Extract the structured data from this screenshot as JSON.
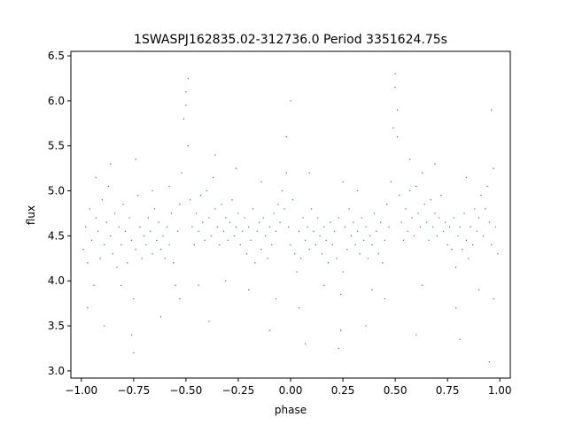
{
  "chart_data": {
    "type": "scatter",
    "title": "1SWASPJ162835.02-312736.0 Period 3351624.75s",
    "xlabel": "phase",
    "ylabel": "flux",
    "xlim": [
      -1.05,
      1.05
    ],
    "ylim": [
      2.92,
      6.55
    ],
    "grid": false,
    "legend": "none",
    "series_color": "#1f77b4",
    "x_ticks": [
      {
        "value": -1.0,
        "label": "−1.00"
      },
      {
        "value": -0.75,
        "label": "−0.75"
      },
      {
        "value": -0.5,
        "label": "−0.50"
      },
      {
        "value": -0.25,
        "label": "−0.25"
      },
      {
        "value": 0.0,
        "label": "0.00"
      },
      {
        "value": 0.25,
        "label": "0.25"
      },
      {
        "value": 0.5,
        "label": "0.50"
      },
      {
        "value": 0.75,
        "label": "0.75"
      },
      {
        "value": 1.0,
        "label": "1.00"
      }
    ],
    "y_ticks": [
      {
        "value": 3.0,
        "label": "3.0"
      },
      {
        "value": 3.5,
        "label": "3.5"
      },
      {
        "value": 4.0,
        "label": "4.0"
      },
      {
        "value": 4.5,
        "label": "4.5"
      },
      {
        "value": 5.0,
        "label": "5.0"
      },
      {
        "value": 5.5,
        "label": "5.5"
      },
      {
        "value": 6.0,
        "label": "6.0"
      },
      {
        "value": 6.5,
        "label": "6.5"
      }
    ],
    "series": [
      {
        "points": [
          [
            -0.99,
            4.35
          ],
          [
            -0.98,
            4.6
          ],
          [
            -0.97,
            4.2
          ],
          [
            -0.96,
            4.8
          ],
          [
            -0.95,
            4.45
          ],
          [
            -0.94,
            3.95
          ],
          [
            -0.93,
            4.7
          ],
          [
            -0.92,
            4.55
          ],
          [
            -0.91,
            4.25
          ],
          [
            -0.9,
            4.9
          ],
          [
            -0.89,
            4.4
          ],
          [
            -0.88,
            4.65
          ],
          [
            -0.87,
            5.05
          ],
          [
            -0.86,
            4.5
          ],
          [
            -0.85,
            4.3
          ],
          [
            -0.84,
            4.75
          ],
          [
            -0.83,
            4.15
          ],
          [
            -0.82,
            4.6
          ],
          [
            -0.81,
            4.4
          ],
          [
            -0.8,
            4.85
          ],
          [
            -0.79,
            4.55
          ],
          [
            -0.78,
            4.2
          ],
          [
            -0.77,
            4.7
          ],
          [
            -0.76,
            4.45
          ],
          [
            -0.75,
            3.8
          ],
          [
            -0.74,
            4.35
          ],
          [
            -0.73,
            4.95
          ],
          [
            -0.72,
            4.6
          ],
          [
            -0.71,
            4.25
          ],
          [
            -0.7,
            4.5
          ],
          [
            -0.69,
            4.4
          ],
          [
            -0.68,
            4.7
          ],
          [
            -0.67,
            4.55
          ],
          [
            -0.66,
            4.3
          ],
          [
            -0.65,
            4.8
          ],
          [
            -0.64,
            4.45
          ],
          [
            -0.63,
            4.65
          ],
          [
            -0.62,
            4.35
          ],
          [
            -0.61,
            4.5
          ],
          [
            -0.6,
            4.25
          ],
          [
            -0.59,
            4.6
          ],
          [
            -0.58,
            4.4
          ],
          [
            -0.57,
            4.75
          ],
          [
            -0.56,
            4.2
          ],
          [
            -0.55,
            3.95
          ],
          [
            -0.54,
            4.55
          ],
          [
            -0.53,
            4.85
          ],
          [
            -0.52,
            5.2
          ],
          [
            -0.51,
            5.8
          ],
          [
            -0.5,
            6.1
          ],
          [
            -0.49,
            5.5
          ],
          [
            -0.48,
            4.9
          ],
          [
            -0.47,
            4.6
          ],
          [
            -0.46,
            4.4
          ],
          [
            -0.45,
            4.75
          ],
          [
            -0.44,
            4.55
          ],
          [
            -0.43,
            4.95
          ],
          [
            -0.42,
            4.65
          ],
          [
            -0.41,
            4.45
          ],
          [
            -0.4,
            5.0
          ],
          [
            -0.39,
            4.7
          ],
          [
            -0.38,
            4.5
          ],
          [
            -0.37,
            5.15
          ],
          [
            -0.36,
            4.8
          ],
          [
            -0.35,
            4.6
          ],
          [
            -0.34,
            4.4
          ],
          [
            -0.33,
            4.85
          ],
          [
            -0.32,
            4.55
          ],
          [
            -0.31,
            4.7
          ],
          [
            -0.3,
            4.45
          ],
          [
            -0.29,
            4.65
          ],
          [
            -0.28,
            4.9
          ],
          [
            -0.27,
            4.5
          ],
          [
            -0.26,
            4.6
          ],
          [
            -0.25,
            4.75
          ],
          [
            -0.24,
            4.4
          ],
          [
            -0.23,
            4.55
          ],
          [
            -0.22,
            4.7
          ],
          [
            -0.21,
            4.3
          ],
          [
            -0.2,
            4.6
          ],
          [
            -0.19,
            4.45
          ],
          [
            -0.18,
            4.8
          ],
          [
            -0.17,
            4.2
          ],
          [
            -0.16,
            4.55
          ],
          [
            -0.15,
            4.65
          ],
          [
            -0.14,
            4.35
          ],
          [
            -0.13,
            4.7
          ],
          [
            -0.12,
            4.5
          ],
          [
            -0.11,
            4.25
          ],
          [
            -0.1,
            4.6
          ],
          [
            -0.09,
            4.4
          ],
          [
            -0.08,
            4.75
          ],
          [
            -0.07,
            4.55
          ],
          [
            -0.06,
            4.85
          ],
          [
            -0.05,
            4.65
          ],
          [
            -0.04,
            5.0
          ],
          [
            -0.03,
            4.8
          ],
          [
            -0.02,
            5.2
          ],
          [
            -0.01,
            4.6
          ],
          [
            0.0,
            4.4
          ],
          [
            0.01,
            4.9
          ],
          [
            0.02,
            4.3
          ],
          [
            0.03,
            4.1
          ],
          [
            0.04,
            4.55
          ],
          [
            0.05,
            4.25
          ],
          [
            0.06,
            4.7
          ],
          [
            0.07,
            4.45
          ],
          [
            0.08,
            4.6
          ],
          [
            0.09,
            4.35
          ],
          [
            0.1,
            4.8
          ],
          [
            0.11,
            4.55
          ],
          [
            0.12,
            4.4
          ],
          [
            0.13,
            4.7
          ],
          [
            0.14,
            4.5
          ],
          [
            0.15,
            4.3
          ],
          [
            0.16,
            4.6
          ],
          [
            0.17,
            4.45
          ],
          [
            0.18,
            4.2
          ],
          [
            0.19,
            4.65
          ],
          [
            0.2,
            4.4
          ],
          [
            0.21,
            4.55
          ],
          [
            0.22,
            4.25
          ],
          [
            0.23,
            4.7
          ],
          [
            0.24,
            3.85
          ],
          [
            0.25,
            4.1
          ],
          [
            0.26,
            4.6
          ],
          [
            0.27,
            4.35
          ],
          [
            0.28,
            4.8
          ],
          [
            0.29,
            4.5
          ],
          [
            0.3,
            4.65
          ],
          [
            0.31,
            4.4
          ],
          [
            0.32,
            4.55
          ],
          [
            0.33,
            4.3
          ],
          [
            0.34,
            4.7
          ],
          [
            0.35,
            4.45
          ],
          [
            0.36,
            4.6
          ],
          [
            0.37,
            4.25
          ],
          [
            0.38,
            4.5
          ],
          [
            0.39,
            4.4
          ],
          [
            0.4,
            4.75
          ],
          [
            0.41,
            4.55
          ],
          [
            0.42,
            4.3
          ],
          [
            0.43,
            4.65
          ],
          [
            0.44,
            4.2
          ],
          [
            0.45,
            4.45
          ],
          [
            0.46,
            4.85
          ],
          [
            0.47,
            4.6
          ],
          [
            0.48,
            5.1
          ],
          [
            0.49,
            5.7
          ],
          [
            0.5,
            6.15
          ],
          [
            0.51,
            5.6
          ],
          [
            0.52,
            4.95
          ],
          [
            0.53,
            4.65
          ],
          [
            0.54,
            4.45
          ],
          [
            0.55,
            4.8
          ],
          [
            0.56,
            4.55
          ],
          [
            0.57,
            5.0
          ],
          [
            0.58,
            4.7
          ],
          [
            0.59,
            4.5
          ],
          [
            0.6,
            5.05
          ],
          [
            0.61,
            4.75
          ],
          [
            0.62,
            4.6
          ],
          [
            0.63,
            5.2
          ],
          [
            0.64,
            4.85
          ],
          [
            0.65,
            4.65
          ],
          [
            0.66,
            4.45
          ],
          [
            0.67,
            4.9
          ],
          [
            0.68,
            4.6
          ],
          [
            0.69,
            4.75
          ],
          [
            0.7,
            4.5
          ],
          [
            0.71,
            4.7
          ],
          [
            0.72,
            4.95
          ],
          [
            0.73,
            4.55
          ],
          [
            0.74,
            4.65
          ],
          [
            0.75,
            4.4
          ],
          [
            0.76,
            4.6
          ],
          [
            0.77,
            4.35
          ],
          [
            0.78,
            4.7
          ],
          [
            0.79,
            4.15
          ],
          [
            0.8,
            4.5
          ],
          [
            0.81,
            4.6
          ],
          [
            0.82,
            4.35
          ],
          [
            0.83,
            4.75
          ],
          [
            0.84,
            4.45
          ],
          [
            0.85,
            4.25
          ],
          [
            0.86,
            4.6
          ],
          [
            0.87,
            4.4
          ],
          [
            0.88,
            4.8
          ],
          [
            0.89,
            4.55
          ],
          [
            0.9,
            4.7
          ],
          [
            0.91,
            4.95
          ],
          [
            0.92,
            4.5
          ],
          [
            0.93,
            4.8
          ],
          [
            0.94,
            5.05
          ],
          [
            0.95,
            4.65
          ],
          [
            0.96,
            4.4
          ],
          [
            0.97,
            5.25
          ],
          [
            0.98,
            4.6
          ],
          [
            0.99,
            4.3
          ],
          [
            -0.97,
            3.7
          ],
          [
            -0.93,
            5.15
          ],
          [
            -0.86,
            5.3
          ],
          [
            -0.81,
            3.95
          ],
          [
            -0.76,
            3.4
          ],
          [
            -0.74,
            5.35
          ],
          [
            -0.66,
            5.0
          ],
          [
            -0.58,
            5.05
          ],
          [
            -0.53,
            3.8
          ],
          [
            -0.5,
            5.95
          ],
          [
            -0.49,
            6.25
          ],
          [
            -0.44,
            3.95
          ],
          [
            -0.36,
            5.4
          ],
          [
            -0.31,
            4.0
          ],
          [
            -0.26,
            5.25
          ],
          [
            -0.2,
            3.9
          ],
          [
            -0.14,
            5.1
          ],
          [
            -0.07,
            3.8
          ],
          [
            -0.02,
            5.6
          ],
          [
            0.0,
            6.0
          ],
          [
            0.04,
            3.7
          ],
          [
            0.09,
            5.2
          ],
          [
            0.16,
            3.95
          ],
          [
            0.24,
            3.45
          ],
          [
            0.25,
            5.1
          ],
          [
            0.32,
            5.0
          ],
          [
            0.39,
            3.9
          ],
          [
            0.45,
            3.8
          ],
          [
            0.5,
            6.3
          ],
          [
            0.51,
            5.9
          ],
          [
            0.57,
            5.35
          ],
          [
            0.63,
            3.95
          ],
          [
            0.69,
            5.3
          ],
          [
            0.79,
            3.7
          ],
          [
            0.84,
            5.15
          ],
          [
            0.9,
            3.9
          ],
          [
            0.96,
            5.9
          ],
          [
            0.97,
            3.8
          ],
          [
            -0.89,
            3.5
          ],
          [
            -0.75,
            3.2
          ],
          [
            -0.62,
            3.6
          ],
          [
            -0.39,
            3.55
          ],
          [
            -0.1,
            3.45
          ],
          [
            0.07,
            3.3
          ],
          [
            0.23,
            3.25
          ],
          [
            0.36,
            3.5
          ],
          [
            0.6,
            3.4
          ],
          [
            0.81,
            3.35
          ],
          [
            0.95,
            3.1
          ]
        ]
      }
    ]
  }
}
